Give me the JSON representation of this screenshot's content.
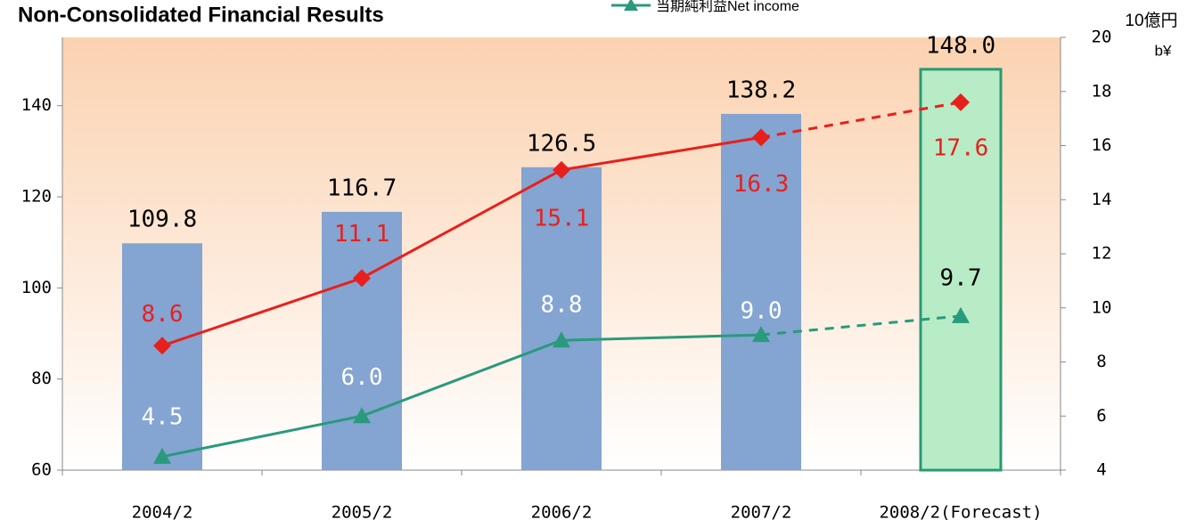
{
  "chart_data": {
    "type": "bar",
    "title": "Non-Consolidated Financial Results",
    "y2_unit_label": [
      "10億円",
      "b¥"
    ],
    "categories": [
      "2004/2",
      "2005/2",
      "2006/2",
      "2007/2",
      "2008/2(Forecast)"
    ],
    "ylim": [
      60,
      155
    ],
    "yticks": [
      60,
      80,
      100,
      120,
      140
    ],
    "y2lim": [
      4,
      20
    ],
    "y2ticks": [
      4,
      6,
      8,
      10,
      12,
      14,
      16,
      18,
      20
    ],
    "bars": {
      "color": "#84a4d2",
      "forecast_color": "#b8ecc6",
      "forecast_border": "#2a9a72",
      "values": [
        109.8,
        116.7,
        126.5,
        138.2,
        148.0
      ],
      "value_labels": [
        "109.8",
        "116.7",
        "126.5",
        "138.2",
        "148.0"
      ]
    },
    "series": [
      {
        "color": "#e8201c",
        "axis": "y2",
        "marker": "diamond",
        "values": [
          8.6,
          11.1,
          15.1,
          16.3,
          17.6
        ]
      },
      {
        "name": "当期純利益Net income",
        "color": "#2a9a7c",
        "axis": "y2",
        "marker": "triangle",
        "values": [
          4.5,
          6.0,
          8.8,
          9.0,
          9.7
        ],
        "value_labels": [
          "4.5",
          "6.0",
          "8.8",
          "9.0",
          "9.7"
        ]
      }
    ]
  }
}
